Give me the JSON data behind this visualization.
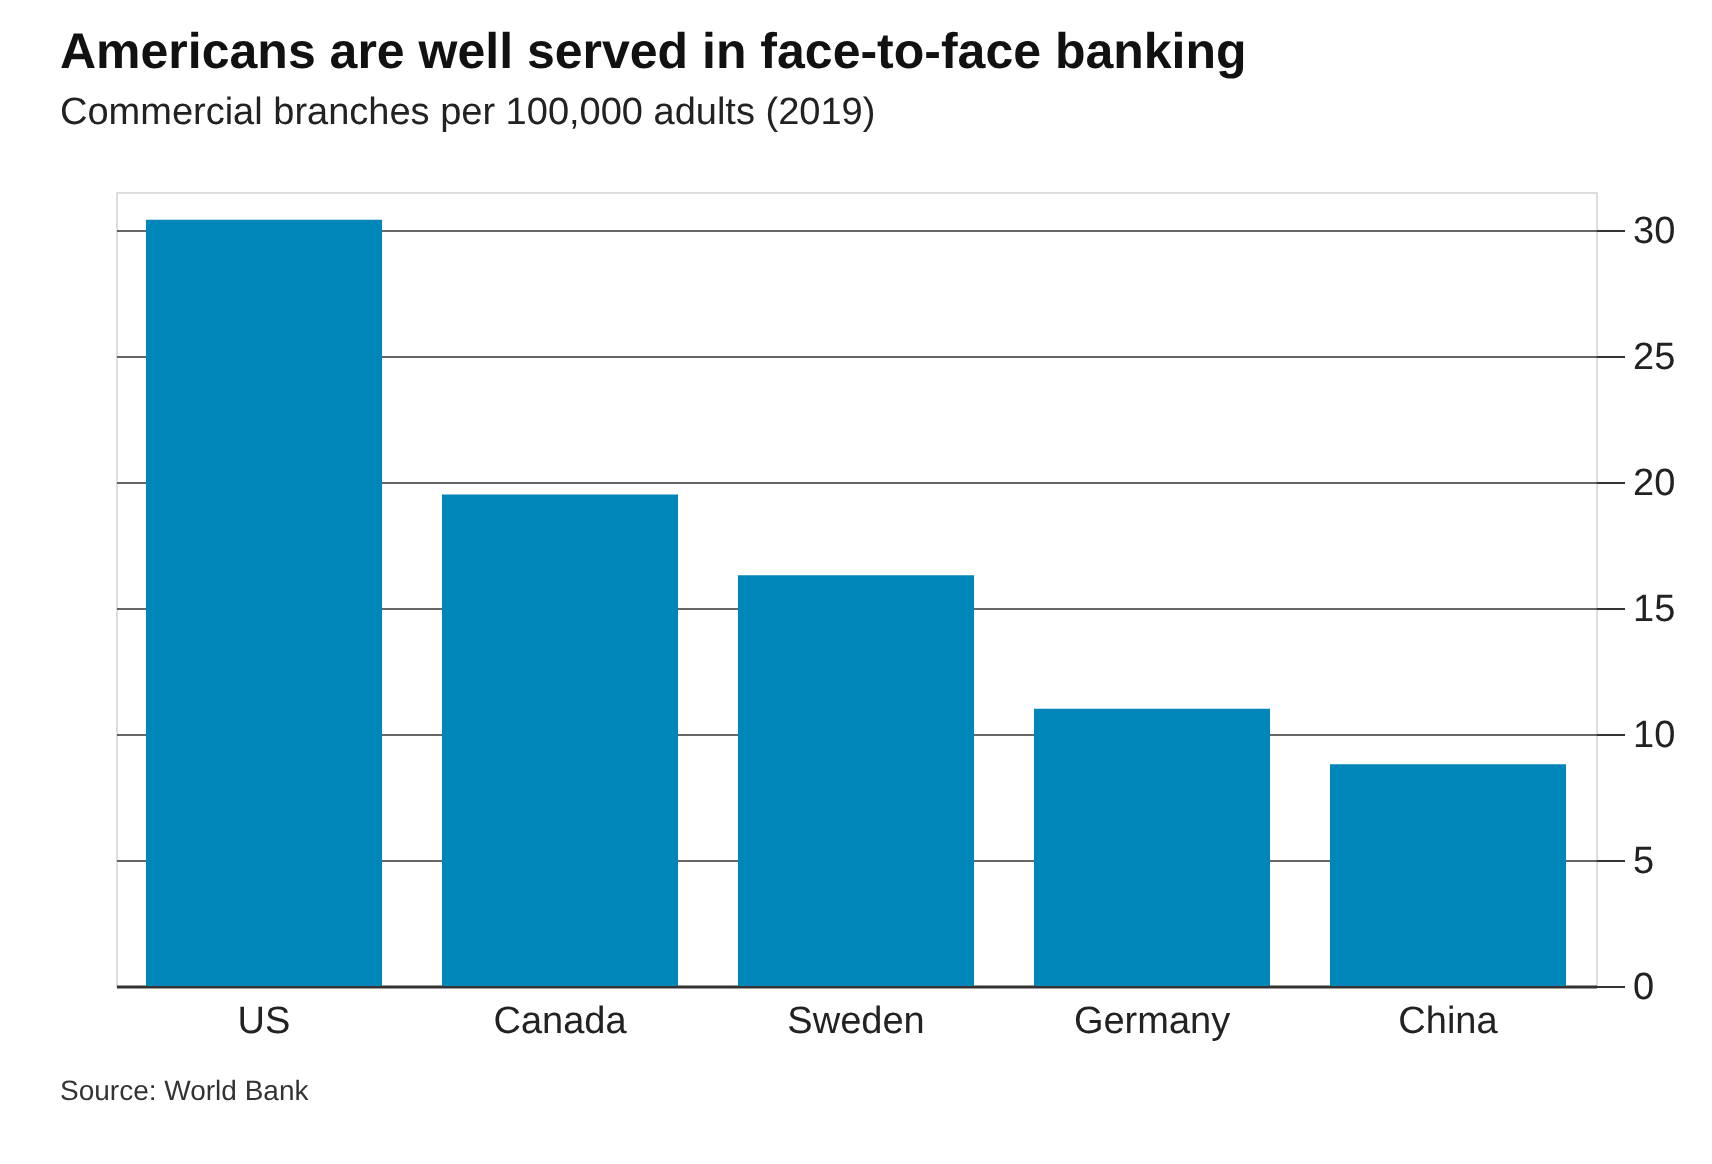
{
  "chart_data": {
    "type": "bar",
    "title": "Americans are well served in face-to-face banking",
    "subtitle": "Commercial branches per 100,000 adults (2019)",
    "categories": [
      "US",
      "Canada",
      "Sweden",
      "Germany",
      "China"
    ],
    "values": [
      30.4,
      19.5,
      16.3,
      11.0,
      8.8
    ],
    "color": "#0086b8",
    "ylim": [
      0,
      31.5
    ],
    "yticks": [
      0,
      5,
      10,
      15,
      20,
      25,
      30
    ],
    "grid": "y",
    "annotations": [
      "Source: World Bank"
    ]
  }
}
